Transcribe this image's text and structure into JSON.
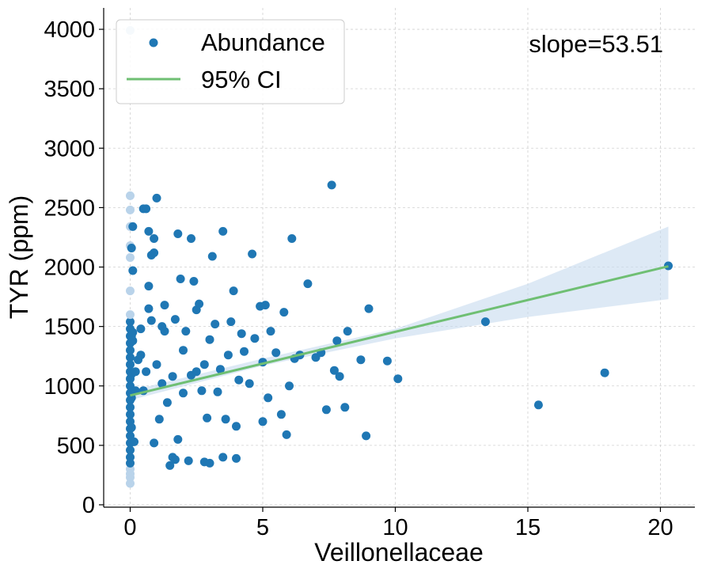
{
  "chart_data": {
    "type": "scatter",
    "xlabel": "Veillonellaceae",
    "ylabel": "TYR (ppm)",
    "xlim": [
      -1,
      21.3
    ],
    "ylim": [
      -20,
      4180
    ],
    "xticks": [
      "0",
      "5",
      "10",
      "15",
      "20"
    ],
    "yticks": [
      "0",
      "500",
      "1000",
      "1500",
      "2000",
      "2500",
      "3000",
      "3500",
      "4000"
    ],
    "grid": true,
    "legend_position": "top-left",
    "annotation": "slope=53.51",
    "colors": {
      "points": "#1f77b4",
      "faded_points": "#b9d3ea",
      "fit_line": "#6fbf73",
      "ci_band": "#c6dbef"
    },
    "legend": [
      {
        "label": "Abundance",
        "kind": "marker"
      },
      {
        "label": "95% CI",
        "kind": "line"
      }
    ],
    "fit": {
      "slope": 53.51,
      "intercept": 920,
      "x": [
        0,
        20.3
      ]
    },
    "ci_band": {
      "x": [
        0,
        5,
        10,
        15,
        20.3
      ],
      "lower": [
        880,
        1170,
        1400,
        1580,
        1730
      ],
      "upper": [
        960,
        1230,
        1480,
        1860,
        2340
      ]
    },
    "series": [
      {
        "name": "Abundance",
        "points": [
          [
            0.0,
            180
          ],
          [
            0.0,
            230
          ],
          [
            0.0,
            260
          ],
          [
            0.0,
            300
          ],
          [
            0.0,
            350
          ],
          [
            0.0,
            400
          ],
          [
            0.0,
            460
          ],
          [
            0.0,
            520
          ],
          [
            0.0,
            580
          ],
          [
            0.0,
            640
          ],
          [
            0.0,
            700
          ],
          [
            0.0,
            760
          ],
          [
            0.0,
            820
          ],
          [
            0.0,
            880
          ],
          [
            0.0,
            940
          ],
          [
            0.0,
            1000
          ],
          [
            0.0,
            1060
          ],
          [
            0.0,
            1120
          ],
          [
            0.0,
            1180
          ],
          [
            0.0,
            1240
          ],
          [
            0.0,
            1300
          ],
          [
            0.0,
            1360
          ],
          [
            0.0,
            1420
          ],
          [
            0.0,
            1480
          ],
          [
            0.0,
            1540
          ],
          [
            0.0,
            1600
          ],
          [
            0.0,
            1800
          ],
          [
            0.0,
            2080
          ],
          [
            0.0,
            2180
          ],
          [
            0.0,
            2340
          ],
          [
            0.0,
            2480
          ],
          [
            0.0,
            2600
          ],
          [
            0.0,
            3990
          ],
          [
            0.05,
            650
          ],
          [
            0.05,
            900
          ],
          [
            0.05,
            1100
          ],
          [
            0.05,
            1420
          ],
          [
            0.05,
            2160
          ],
          [
            0.1,
            1380
          ],
          [
            0.1,
            1450
          ],
          [
            0.1,
            1970
          ],
          [
            0.1,
            2340
          ],
          [
            0.15,
            530
          ],
          [
            0.2,
            960
          ],
          [
            0.2,
            1120
          ],
          [
            0.3,
            1220
          ],
          [
            0.4,
            1260
          ],
          [
            0.4,
            1480
          ],
          [
            0.5,
            960
          ],
          [
            0.5,
            2490
          ],
          [
            0.6,
            2490
          ],
          [
            0.6,
            1120
          ],
          [
            0.7,
            1650
          ],
          [
            0.7,
            1840
          ],
          [
            0.7,
            2300
          ],
          [
            0.8,
            1550
          ],
          [
            0.8,
            2100
          ],
          [
            0.9,
            520
          ],
          [
            0.9,
            2240
          ],
          [
            0.9,
            2120
          ],
          [
            1.0,
            2580
          ],
          [
            1.0,
            1180
          ],
          [
            1.1,
            720
          ],
          [
            1.2,
            1020
          ],
          [
            1.2,
            1500
          ],
          [
            1.3,
            1680
          ],
          [
            1.3,
            1460
          ],
          [
            1.4,
            860
          ],
          [
            1.5,
            330
          ],
          [
            1.6,
            1080
          ],
          [
            1.6,
            400
          ],
          [
            1.7,
            1560
          ],
          [
            1.7,
            380
          ],
          [
            1.8,
            550
          ],
          [
            1.8,
            2280
          ],
          [
            1.9,
            1900
          ],
          [
            2.0,
            940
          ],
          [
            2.0,
            1300
          ],
          [
            2.1,
            1460
          ],
          [
            2.2,
            370
          ],
          [
            2.3,
            1090
          ],
          [
            2.3,
            2240
          ],
          [
            2.4,
            1880
          ],
          [
            2.5,
            1640
          ],
          [
            2.5,
            1120
          ],
          [
            2.6,
            1690
          ],
          [
            2.7,
            960
          ],
          [
            2.8,
            1180
          ],
          [
            2.8,
            360
          ],
          [
            2.9,
            730
          ],
          [
            3.0,
            1390
          ],
          [
            3.0,
            350
          ],
          [
            3.1,
            2090
          ],
          [
            3.2,
            1520
          ],
          [
            3.3,
            950
          ],
          [
            3.4,
            1140
          ],
          [
            3.5,
            400
          ],
          [
            3.5,
            2300
          ],
          [
            3.6,
            720
          ],
          [
            3.7,
            1260
          ],
          [
            3.8,
            1540
          ],
          [
            3.9,
            1800
          ],
          [
            4.0,
            660
          ],
          [
            4.0,
            390
          ],
          [
            4.1,
            1050
          ],
          [
            4.2,
            1440
          ],
          [
            4.3,
            1290
          ],
          [
            4.5,
            1020
          ],
          [
            4.6,
            2110
          ],
          [
            4.7,
            1400
          ],
          [
            4.9,
            1670
          ],
          [
            5.0,
            700
          ],
          [
            5.0,
            1200
          ],
          [
            5.1,
            1680
          ],
          [
            5.2,
            900
          ],
          [
            5.3,
            1460
          ],
          [
            5.5,
            1280
          ],
          [
            5.7,
            760
          ],
          [
            5.8,
            1620
          ],
          [
            5.9,
            590
          ],
          [
            6.0,
            1000
          ],
          [
            6.1,
            2240
          ],
          [
            6.2,
            1230
          ],
          [
            6.4,
            1260
          ],
          [
            6.7,
            1860
          ],
          [
            7.0,
            1240
          ],
          [
            7.2,
            1280
          ],
          [
            7.4,
            800
          ],
          [
            7.6,
            2690
          ],
          [
            7.7,
            1130
          ],
          [
            7.8,
            1380
          ],
          [
            7.9,
            1080
          ],
          [
            8.1,
            820
          ],
          [
            8.2,
            1460
          ],
          [
            8.7,
            1220
          ],
          [
            8.9,
            580
          ],
          [
            9.0,
            1650
          ],
          [
            9.7,
            1210
          ],
          [
            10.1,
            1060
          ],
          [
            13.4,
            1540
          ],
          [
            15.4,
            840
          ],
          [
            17.9,
            1110
          ],
          [
            20.3,
            2010
          ]
        ]
      }
    ]
  }
}
